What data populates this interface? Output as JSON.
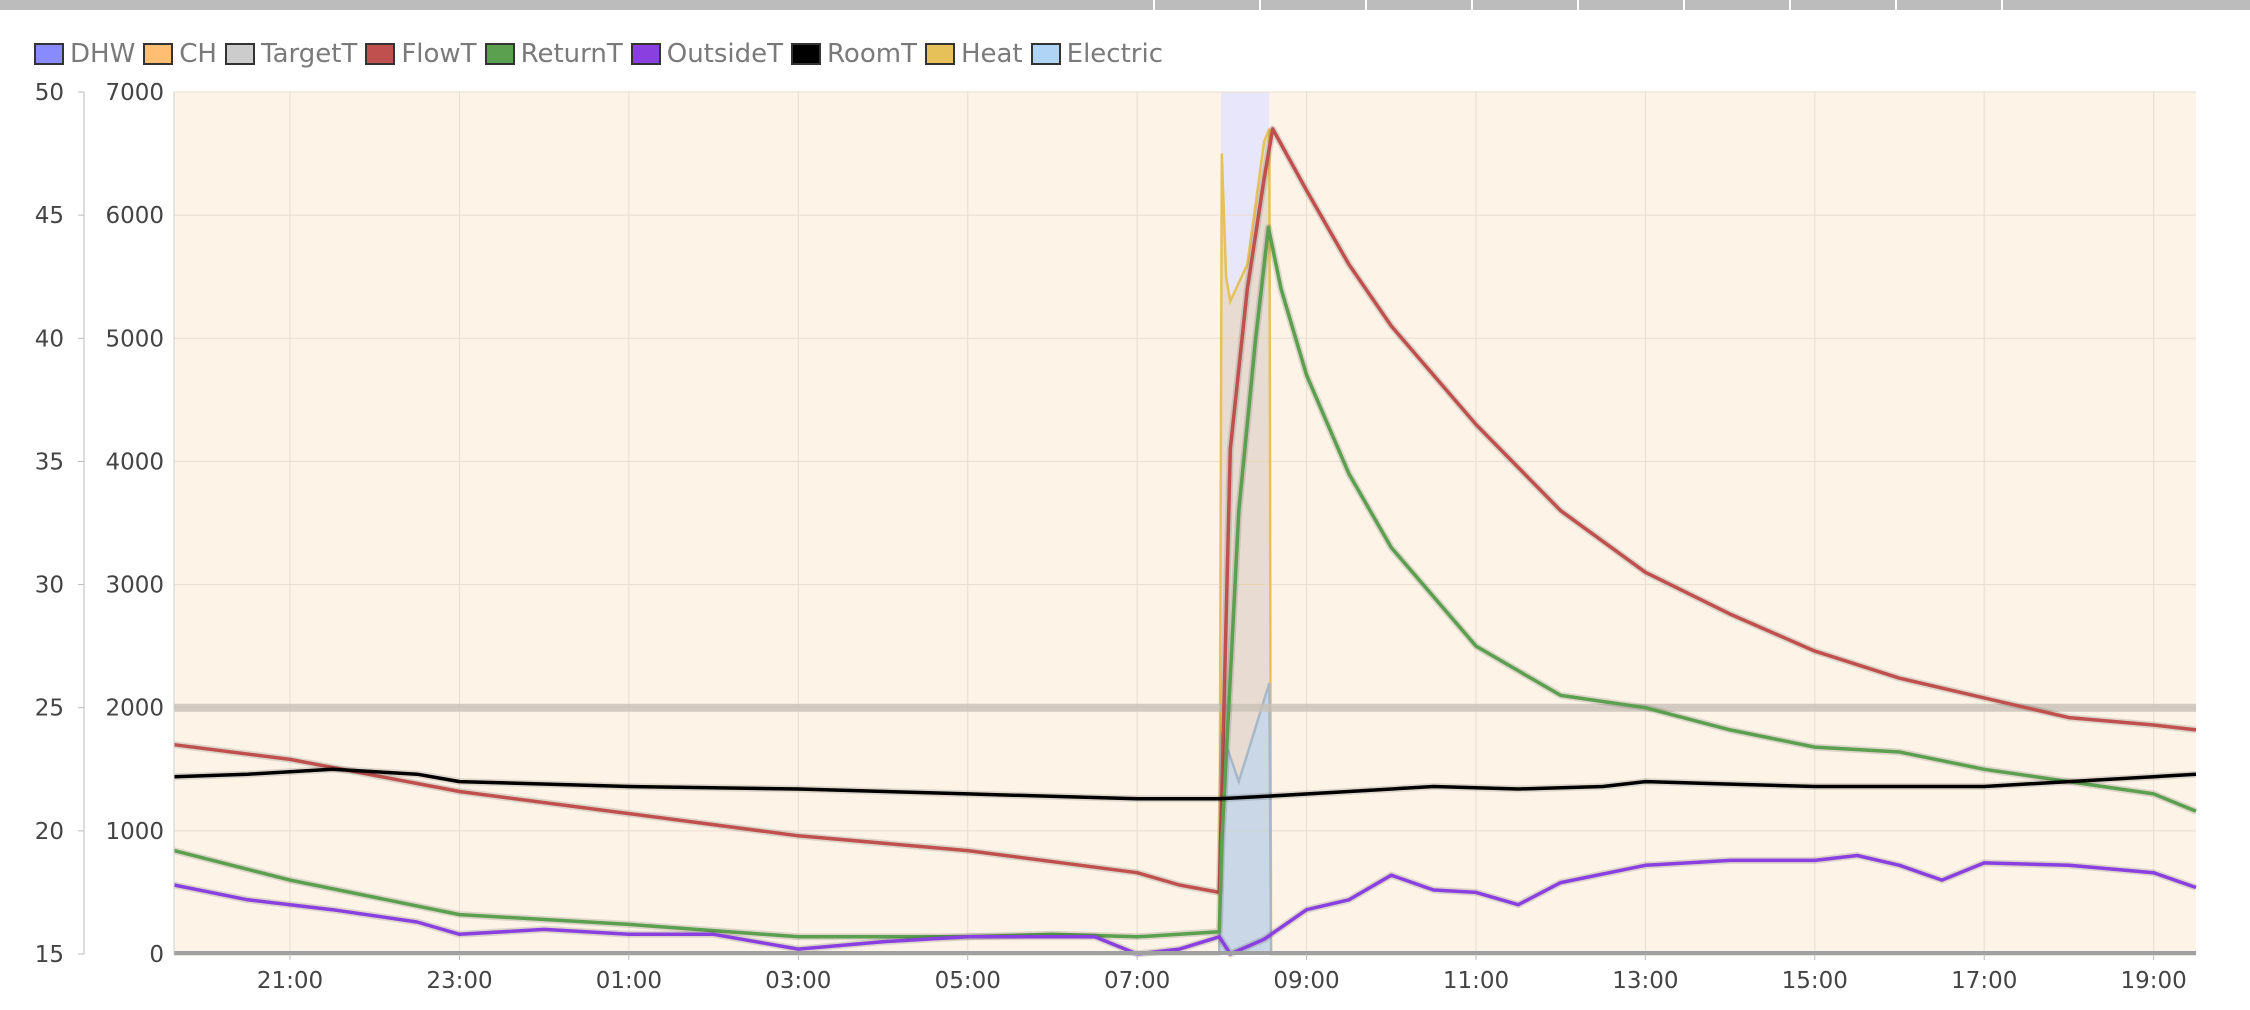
{
  "chart_data": {
    "type": "line",
    "legend": {
      "placement": "top-left",
      "items": [
        {
          "key": "dhw",
          "label": "DHW",
          "color": "#8a8aff"
        },
        {
          "key": "ch",
          "label": "CH",
          "color": "#ffbe73"
        },
        {
          "key": "target",
          "label": "TargetT",
          "color": "#cccccc"
        },
        {
          "key": "flow",
          "label": "FlowT",
          "color": "#c0504d"
        },
        {
          "key": "return",
          "label": "ReturnT",
          "color": "#5aa04e"
        },
        {
          "key": "outside",
          "label": "OutsideT",
          "color": "#8a3fe0"
        },
        {
          "key": "room",
          "label": "RoomT",
          "color": "#000000"
        },
        {
          "key": "heat",
          "label": "Heat",
          "color": "#e6c15a"
        },
        {
          "key": "electric",
          "label": "Electric",
          "color": "#b0d4f5"
        }
      ]
    },
    "x_axis": {
      "range_hours": [
        19.63,
        43.5
      ],
      "ticks": [
        {
          "h": 21,
          "label": "21:00"
        },
        {
          "h": 23,
          "label": "23:00"
        },
        {
          "h": 25,
          "label": "01:00"
        },
        {
          "h": 27,
          "label": "03:00"
        },
        {
          "h": 29,
          "label": "05:00"
        },
        {
          "h": 31,
          "label": "07:00"
        },
        {
          "h": 33,
          "label": "09:00"
        },
        {
          "h": 35,
          "label": "11:00"
        },
        {
          "h": 37,
          "label": "13:00"
        },
        {
          "h": 39,
          "label": "15:00"
        },
        {
          "h": 41,
          "label": "17:00"
        },
        {
          "h": 43,
          "label": "19:00"
        }
      ]
    },
    "y_axis_temp": {
      "range": [
        15,
        50
      ],
      "ticks": [
        "15",
        "20",
        "25",
        "30",
        "35",
        "40",
        "45",
        "50"
      ]
    },
    "y_axis_power": {
      "range": [
        0,
        7000
      ],
      "ticks": [
        "0",
        "1000",
        "2000",
        "3000",
        "4000",
        "5000",
        "6000",
        "7000"
      ]
    },
    "grid": true,
    "ch_band": {
      "from": 19.63,
      "to": 43.5,
      "color": "#fdf3e6"
    },
    "dhw_band": {
      "from": 31.99,
      "to": 32.56,
      "color": "#e8e6fa"
    },
    "series": {
      "target": {
        "points": [
          [
            19.63,
            25
          ],
          [
            43.5,
            25
          ]
        ]
      },
      "flow": {
        "points": [
          [
            19.63,
            23.5
          ],
          [
            21,
            22.9
          ],
          [
            23,
            21.6
          ],
          [
            25,
            20.7
          ],
          [
            27,
            19.8
          ],
          [
            29,
            19.2
          ],
          [
            31,
            18.3
          ],
          [
            31.5,
            17.8
          ],
          [
            31.97,
            17.5
          ],
          [
            32.0,
            21.5
          ],
          [
            32.1,
            35.5
          ],
          [
            32.3,
            42
          ],
          [
            32.5,
            46.5
          ],
          [
            32.6,
            48.5
          ],
          [
            33,
            46
          ],
          [
            33.5,
            43
          ],
          [
            34,
            40.5
          ],
          [
            35,
            36.5
          ],
          [
            36,
            33
          ],
          [
            37,
            30.5
          ],
          [
            38,
            28.8
          ],
          [
            39,
            27.3
          ],
          [
            40,
            26.2
          ],
          [
            41,
            25.4
          ],
          [
            42,
            24.6
          ],
          [
            43,
            24.3
          ],
          [
            43.5,
            24.1
          ]
        ]
      },
      "return": {
        "points": [
          [
            19.63,
            19.2
          ],
          [
            21,
            18
          ],
          [
            23,
            16.6
          ],
          [
            25,
            16.2
          ],
          [
            27,
            15.7
          ],
          [
            29,
            15.7
          ],
          [
            30,
            15.8
          ],
          [
            31,
            15.7
          ],
          [
            31.97,
            15.9
          ],
          [
            32.0,
            19.5
          ],
          [
            32.2,
            33
          ],
          [
            32.4,
            40
          ],
          [
            32.55,
            44.5
          ],
          [
            32.7,
            42
          ],
          [
            33,
            38.5
          ],
          [
            33.5,
            34.5
          ],
          [
            34,
            31.5
          ],
          [
            35,
            27.5
          ],
          [
            35.5,
            26.5
          ],
          [
            36,
            25.5
          ],
          [
            37,
            25
          ],
          [
            38,
            24.1
          ],
          [
            39,
            23.4
          ],
          [
            40,
            23.2
          ],
          [
            41,
            22.5
          ],
          [
            42,
            22
          ],
          [
            43,
            21.5
          ],
          [
            43.5,
            20.8
          ]
        ]
      },
      "outside": {
        "points": [
          [
            19.63,
            17.8
          ],
          [
            20.5,
            17.2
          ],
          [
            21.5,
            16.8
          ],
          [
            22.5,
            16.3
          ],
          [
            23,
            15.8
          ],
          [
            24,
            16
          ],
          [
            25,
            15.8
          ],
          [
            26,
            15.8
          ],
          [
            27,
            15.2
          ],
          [
            28,
            15.5
          ],
          [
            29,
            15.7
          ],
          [
            29.5,
            15.7
          ],
          [
            30.5,
            15.7
          ],
          [
            31,
            15.0
          ],
          [
            31.5,
            15.2
          ],
          [
            31.97,
            15.7
          ],
          [
            32.1,
            15.0
          ],
          [
            32.5,
            15.6
          ],
          [
            33,
            16.8
          ],
          [
            33.5,
            17.2
          ],
          [
            34,
            18.2
          ],
          [
            34.5,
            17.6
          ],
          [
            35,
            17.5
          ],
          [
            35.5,
            17.0
          ],
          [
            36,
            17.9
          ],
          [
            37,
            18.6
          ],
          [
            38,
            18.8
          ],
          [
            39,
            18.8
          ],
          [
            39.5,
            19.0
          ],
          [
            40,
            18.6
          ],
          [
            40.5,
            18.0
          ],
          [
            41,
            18.7
          ],
          [
            42,
            18.6
          ],
          [
            43,
            18.3
          ],
          [
            43.5,
            17.7
          ]
        ]
      },
      "room": {
        "points": [
          [
            19.63,
            22.2
          ],
          [
            20.5,
            22.3
          ],
          [
            21.5,
            22.5
          ],
          [
            22.5,
            22.3
          ],
          [
            23,
            22.0
          ],
          [
            25,
            21.8
          ],
          [
            27,
            21.7
          ],
          [
            29,
            21.5
          ],
          [
            31,
            21.3
          ],
          [
            31.97,
            21.3
          ],
          [
            32.5,
            21.4
          ],
          [
            33.5,
            21.6
          ],
          [
            34.5,
            21.8
          ],
          [
            35.5,
            21.7
          ],
          [
            36.5,
            21.8
          ],
          [
            37,
            22.0
          ],
          [
            38,
            21.9
          ],
          [
            39,
            21.8
          ],
          [
            40,
            21.8
          ],
          [
            41,
            21.8
          ],
          [
            42,
            22.0
          ],
          [
            43,
            22.2
          ],
          [
            43.5,
            22.3
          ]
        ]
      },
      "heat": {
        "points": [
          [
            19.63,
            0
          ],
          [
            31.97,
            0
          ],
          [
            32.0,
            6500
          ],
          [
            32.05,
            5500
          ],
          [
            32.1,
            5300
          ],
          [
            32.3,
            5600
          ],
          [
            32.5,
            6600
          ],
          [
            32.56,
            6700
          ],
          [
            32.58,
            0
          ],
          [
            43.5,
            0
          ]
        ]
      },
      "electric": {
        "points": [
          [
            19.63,
            0
          ],
          [
            31.97,
            0
          ],
          [
            32.0,
            1800
          ],
          [
            32.2,
            1400
          ],
          [
            32.56,
            2200
          ],
          [
            32.58,
            0
          ],
          [
            43.5,
            0
          ]
        ]
      }
    }
  }
}
